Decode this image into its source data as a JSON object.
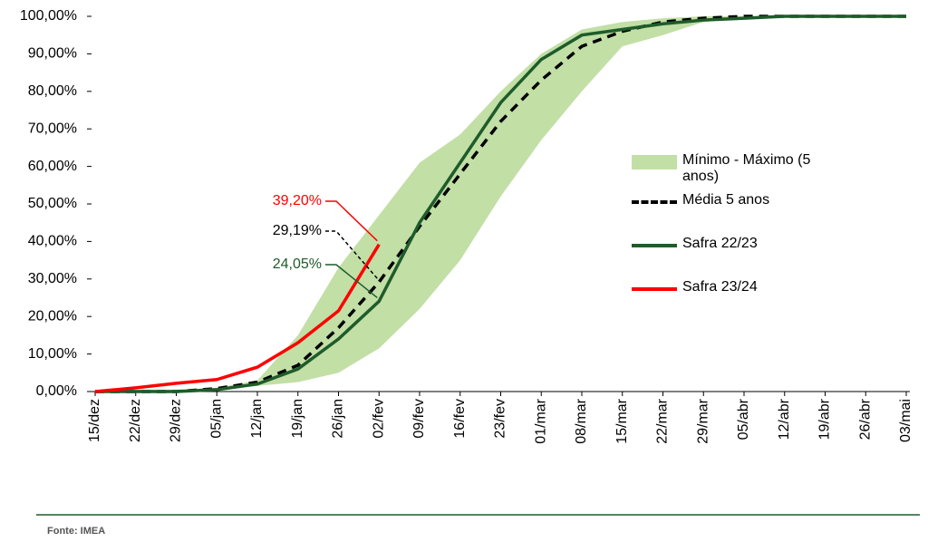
{
  "chart_data": {
    "type": "line",
    "categories": [
      "15/dez",
      "22/dez",
      "29/dez",
      "05/jan",
      "12/jan",
      "19/jan",
      "26/jan",
      "02/fev",
      "09/fev",
      "16/fev",
      "23/fev",
      "01/mar",
      "08/mar",
      "15/mar",
      "22/mar",
      "29/mar",
      "05/abr",
      "12/abr",
      "19/abr",
      "26/abr",
      "03/mai"
    ],
    "ylim": [
      0,
      100
    ],
    "yticks": [
      {
        "value": 0,
        "label": "0,00%"
      },
      {
        "value": 10,
        "label": "10,00%"
      },
      {
        "value": 20,
        "label": "20,00%"
      },
      {
        "value": 30,
        "label": "30,00%"
      },
      {
        "value": 40,
        "label": "40,00%"
      },
      {
        "value": 50,
        "label": "50,00%"
      },
      {
        "value": 60,
        "label": "60,00%"
      },
      {
        "value": 70,
        "label": "70,00%"
      },
      {
        "value": 80,
        "label": "80,00%"
      },
      {
        "value": 90,
        "label": "90,00%"
      },
      {
        "value": 100,
        "label": "100,00%"
      }
    ],
    "band": {
      "name": "Mínimo - Máximo (5 anos)",
      "color": "#c2dfa6",
      "lower": [
        0,
        0,
        0,
        0.5,
        1.5,
        2.5,
        5,
        11.5,
        22,
        35,
        52,
        67,
        80,
        92,
        95,
        98.5,
        99.5,
        100,
        100,
        100,
        100
      ],
      "upper": [
        0.3,
        0.5,
        0.5,
        1,
        3,
        15,
        33,
        47,
        61,
        68.5,
        80,
        90,
        96.5,
        98.5,
        99.5,
        100,
        100,
        100,
        100,
        100,
        100
      ]
    },
    "series": [
      {
        "name": "Média 5 anos",
        "color": "#000000",
        "dashed": true,
        "values": [
          0,
          0,
          0,
          0.8,
          2.5,
          7,
          17,
          29.19,
          44,
          58,
          72,
          83,
          92,
          96,
          98.5,
          99.5,
          100,
          100,
          100,
          100,
          100
        ],
        "value_labels": [
          null,
          null,
          null,
          null,
          null,
          null,
          null,
          "29,19%",
          null,
          null,
          null,
          null,
          null,
          null,
          null,
          null,
          null,
          null,
          null,
          null,
          null
        ]
      },
      {
        "name": "Safra 22/23",
        "color": "#1e5c2a",
        "dashed": false,
        "values": [
          0,
          0,
          0,
          0.5,
          2,
          6,
          14,
          24.05,
          45,
          61,
          77,
          88.5,
          95,
          96.5,
          98,
          99,
          99.5,
          100,
          100,
          100,
          100
        ],
        "value_labels": [
          null,
          null,
          null,
          null,
          null,
          null,
          null,
          "24,05%",
          null,
          null,
          null,
          null,
          null,
          null,
          null,
          null,
          null,
          null,
          null,
          null,
          null
        ]
      },
      {
        "name": "Safra 23/24",
        "color": "#ff0000",
        "dashed": false,
        "values": [
          0,
          1,
          2.2,
          3.2,
          6.5,
          13,
          21.5,
          39.2,
          null,
          null,
          null,
          null,
          null,
          null,
          null,
          null,
          null,
          null,
          null,
          null,
          null
        ],
        "value_labels": [
          null,
          null,
          null,
          null,
          null,
          null,
          null,
          "39,20%",
          null,
          null,
          null,
          null,
          null,
          null,
          null,
          null,
          null,
          null,
          null,
          null,
          null
        ]
      }
    ]
  },
  "footer": "Fonte: IMEA"
}
